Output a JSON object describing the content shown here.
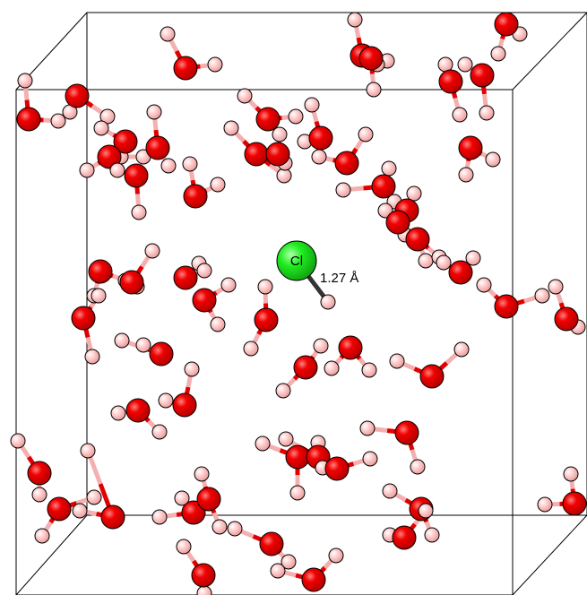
{
  "atom_label": "Cl",
  "distance_label": "1.27 Å"
}
